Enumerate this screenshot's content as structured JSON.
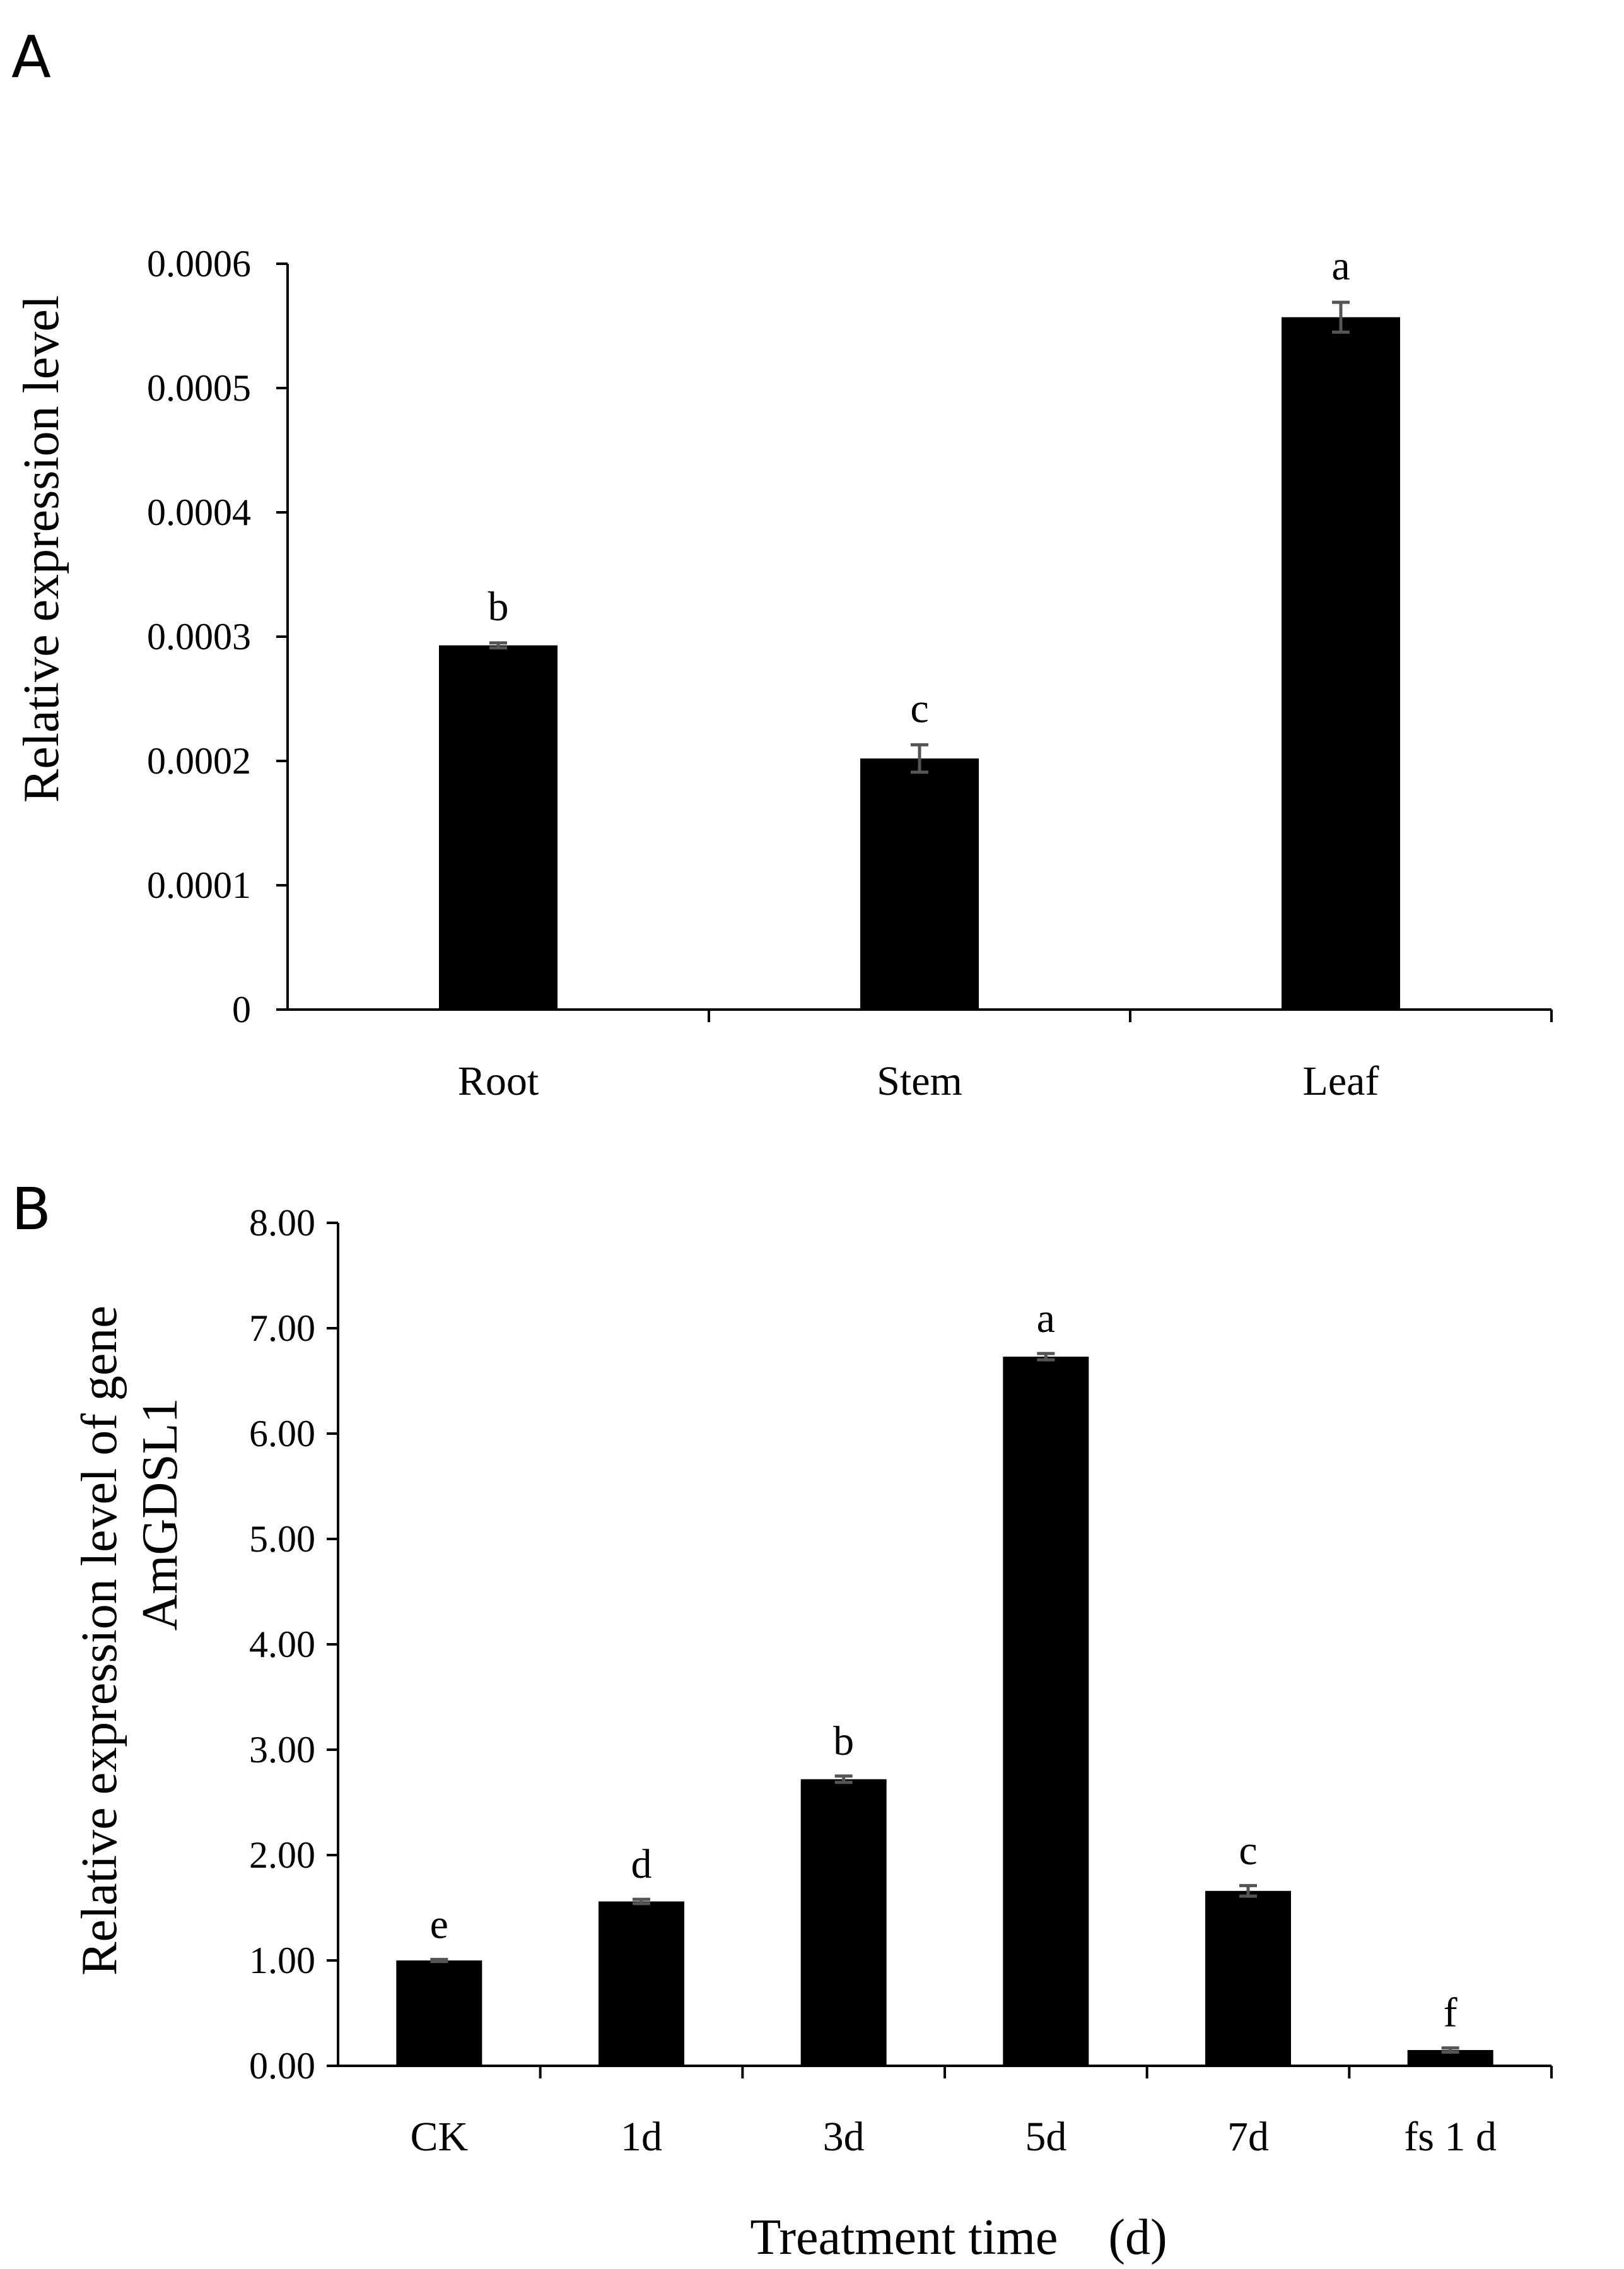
{
  "chart_data": [
    {
      "panel": "A",
      "type": "bar",
      "title": "",
      "xlabel": "",
      "ylabel": "Relative expression level",
      "categories": [
        "Root",
        "Stem",
        "Leaf"
      ],
      "values": [
        0.000293,
        0.000202,
        0.000557
      ],
      "errors": [
        2e-06,
        1.1e-05,
        1.2e-05
      ],
      "significance": [
        "b",
        "c",
        "a"
      ],
      "ylim": [
        0,
        0.0006
      ],
      "yticks": [
        0,
        0.0001,
        0.0002,
        0.0003,
        0.0004,
        0.0005,
        0.0006
      ],
      "ytick_labels": [
        "0",
        "0.0001",
        "0.0002",
        "0.0003",
        "0.0004",
        "0.0005",
        "0.0006"
      ],
      "grid": false,
      "bar_color": "#000000",
      "error_color": "#555555"
    },
    {
      "panel": "B",
      "type": "bar",
      "title": "",
      "xlabel": "Treatment time　(d)",
      "ylabel": "Relative expression level of gene",
      "ylabel_line2": "AmGDSL1",
      "categories": [
        "CK",
        "1d",
        "3d",
        "5d",
        "7d",
        "fs 1 d"
      ],
      "values": [
        1.0,
        1.56,
        2.72,
        6.73,
        1.66,
        0.15
      ],
      "errors": [
        0.01,
        0.02,
        0.03,
        0.03,
        0.05,
        0.02
      ],
      "significance": [
        "e",
        "d",
        "b",
        "a",
        "c",
        "f"
      ],
      "ylim": [
        0,
        8
      ],
      "yticks": [
        0,
        1,
        2,
        3,
        4,
        5,
        6,
        7,
        8
      ],
      "ytick_labels": [
        "0.00",
        "1.00",
        "2.00",
        "3.00",
        "4.00",
        "5.00",
        "6.00",
        "7.00",
        "8.00"
      ],
      "grid": false,
      "bar_color": "#000000",
      "error_color": "#555555"
    }
  ]
}
